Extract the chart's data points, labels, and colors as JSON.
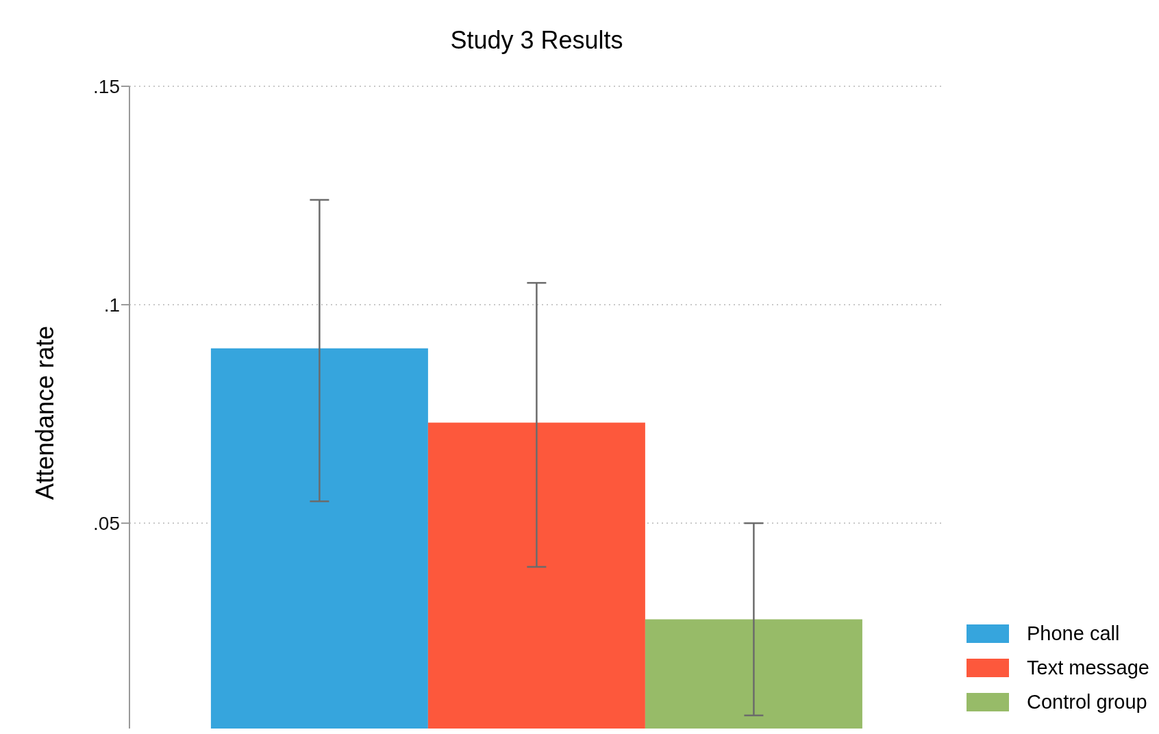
{
  "chart_data": {
    "type": "bar",
    "title": "Study 3 Results",
    "ylabel": "Attendance rate",
    "categories": [
      null
    ],
    "series": [
      {
        "name": "Phone call",
        "color": "#36a5dd",
        "values": [
          0.09
        ],
        "errors": [
          [
            0.055,
            0.124
          ]
        ]
      },
      {
        "name": "Text message",
        "color": "#fd583c",
        "values": [
          0.073
        ],
        "errors": [
          [
            0.04,
            0.105
          ]
        ]
      },
      {
        "name": "Control group",
        "color": "#97bb68",
        "values": [
          0.028
        ],
        "errors": [
          [
            0.006,
            0.05
          ]
        ]
      }
    ],
    "ylim": [
      0.003,
      0.15
    ],
    "yticks": [
      {
        "value": 0.05,
        "label": ".05"
      },
      {
        "value": 0.1,
        "label": ".1"
      },
      {
        "value": 0.15,
        "label": ".15"
      }
    ],
    "grid": "y",
    "legend": "bottom right",
    "tick_labels": "y"
  }
}
